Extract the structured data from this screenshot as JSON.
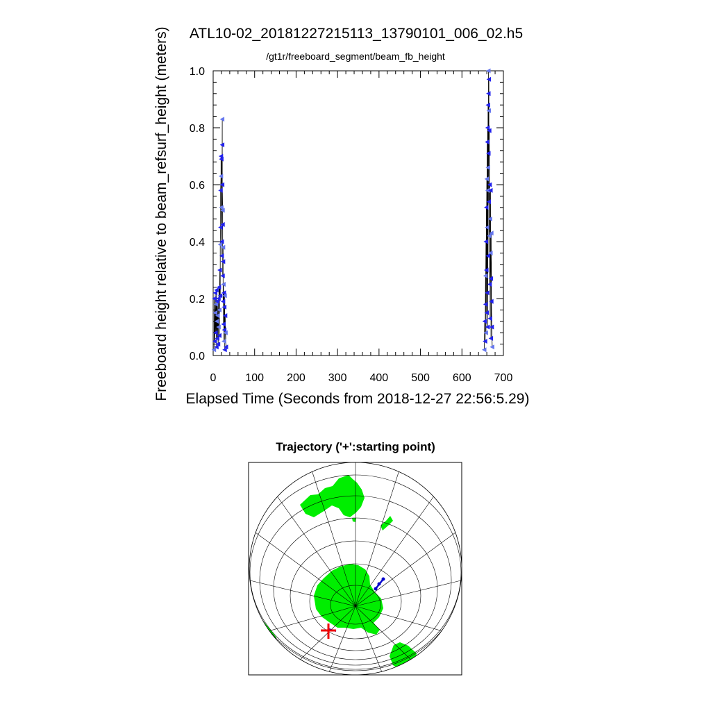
{
  "chart_data": [
    {
      "type": "scatter",
      "title": "ATL10-02_20181227215113_13790101_006_02.h5",
      "subtitle": "/gt1r/freeboard_segment/beam_fb_height",
      "xlabel": "Elapsed Time (Seconds from 2018-12-27 22:56:5.29)",
      "ylabel": "Freeboard height relative to beam_refsurf_height (meters)",
      "xlim": [
        0,
        700
      ],
      "ylim": [
        0,
        1.0
      ],
      "xticks": [
        0,
        100,
        200,
        300,
        400,
        500,
        600,
        700
      ],
      "xtick_labels": [
        "0",
        "100",
        "200",
        "300",
        "400",
        "500",
        "600",
        "700"
      ],
      "yticks": [
        0,
        0.2,
        0.4,
        0.6,
        0.8,
        1.0
      ],
      "ytick_labels": [
        "0.0",
        "0.2",
        "0.4",
        "0.6",
        "0.8",
        "1.0"
      ],
      "grid": false,
      "marker": "triangle-left",
      "colors": {
        "points": "#2222ee",
        "points_light": "#6677ee",
        "line": "#000000"
      },
      "series": [
        {
          "x": [
            2,
            3,
            4,
            5,
            5,
            6,
            7,
            8,
            8,
            9,
            10,
            10,
            11,
            12,
            13,
            13,
            14,
            15,
            15,
            16,
            17,
            17,
            18,
            18,
            19,
            19,
            20,
            20,
            21,
            21,
            22,
            22,
            22,
            23,
            23,
            23,
            24,
            24,
            24,
            25,
            25,
            26,
            26,
            27,
            27,
            28,
            28,
            29,
            30,
            31
          ],
          "y": [
            0.02,
            0.2,
            0.05,
            0.15,
            0.22,
            0.08,
            0.18,
            0.03,
            0.23,
            0.12,
            0.06,
            0.19,
            0.14,
            0.04,
            0.2,
            0.1,
            0.24,
            0.07,
            0.16,
            0.3,
            0.21,
            0.39,
            0.45,
            0.58,
            0.63,
            0.7,
            0.69,
            0.52,
            0.4,
            0.35,
            0.83,
            0.74,
            0.6,
            0.51,
            0.46,
            0.28,
            0.38,
            0.33,
            0.19,
            0.25,
            0.11,
            0.22,
            0.05,
            0.17,
            0.09,
            0.21,
            0.02,
            0.14,
            0.08,
            0.03
          ]
        },
        {
          "x": [
            654,
            655,
            656,
            657,
            657,
            658,
            658,
            659,
            659,
            660,
            660,
            661,
            661,
            661,
            662,
            662,
            662,
            663,
            663,
            663,
            664,
            664,
            664,
            665,
            665,
            665,
            666,
            666,
            667,
            667,
            668,
            668,
            669,
            669,
            670,
            670,
            671,
            671,
            672,
            673
          ],
          "y": [
            0.02,
            0.12,
            0.05,
            0.28,
            0.18,
            0.4,
            0.08,
            0.52,
            0.3,
            0.62,
            0.15,
            0.75,
            0.45,
            0.22,
            0.8,
            0.58,
            0.1,
            0.88,
            0.66,
            0.35,
            0.92,
            1.0,
            0.71,
            0.97,
            0.86,
            0.54,
            0.79,
            0.42,
            0.6,
            0.25,
            0.48,
            0.13,
            0.58,
            0.36,
            0.27,
            0.06,
            0.43,
            0.19,
            0.1,
            0.03
          ]
        }
      ]
    },
    {
      "type": "map",
      "title": "Trajectory ('+':starting point)",
      "projection": "orthographic, south polar view",
      "colors": {
        "land": "#00ee00",
        "track": "#0000cc",
        "start_marker": "#ee0000",
        "grid": "#000000"
      }
    }
  ]
}
